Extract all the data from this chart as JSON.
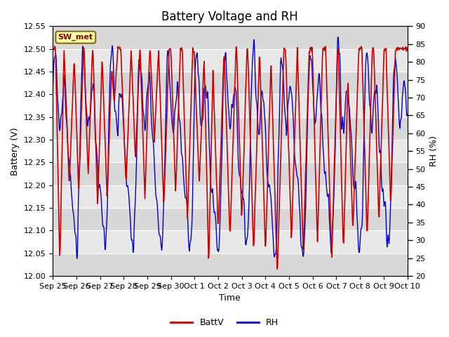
{
  "title": "Battery Voltage and RH",
  "xlabel": "Time",
  "ylabel_left": "Battery (V)",
  "ylabel_right": "RH (%)",
  "station_label": "SW_met",
  "ylim_left": [
    12.0,
    12.55
  ],
  "ylim_right": [
    20,
    90
  ],
  "yticks_left": [
    12.0,
    12.05,
    12.1,
    12.15,
    12.2,
    12.25,
    12.3,
    12.35,
    12.4,
    12.45,
    12.5,
    12.55
  ],
  "yticks_right": [
    20,
    25,
    30,
    35,
    40,
    45,
    50,
    55,
    60,
    65,
    70,
    75,
    80,
    85,
    90
  ],
  "xtick_labels": [
    "Sep 25",
    "Sep 26",
    "Sep 27",
    "Sep 28",
    "Sep 29",
    "Sep 30",
    "Oct 1",
    "Oct 2",
    "Oct 3",
    "Oct 4",
    "Oct 5",
    "Oct 6",
    "Oct 7",
    "Oct 8",
    "Oct 9",
    "Oct 10"
  ],
  "color_batt": "#cc0000",
  "color_rh": "#0000cc",
  "legend_batt": "BattV",
  "legend_rh": "RH",
  "plot_bg_color": "#dcdcdc",
  "band_color_light": "#e8e8e8",
  "band_color_dark": "#d0d0d0",
  "title_fontsize": 12,
  "label_fontsize": 9,
  "tick_fontsize": 8,
  "legend_fontsize": 9,
  "station_box_color": "#ffffaa",
  "station_box_edge": "#8B6914",
  "n_days": 15
}
